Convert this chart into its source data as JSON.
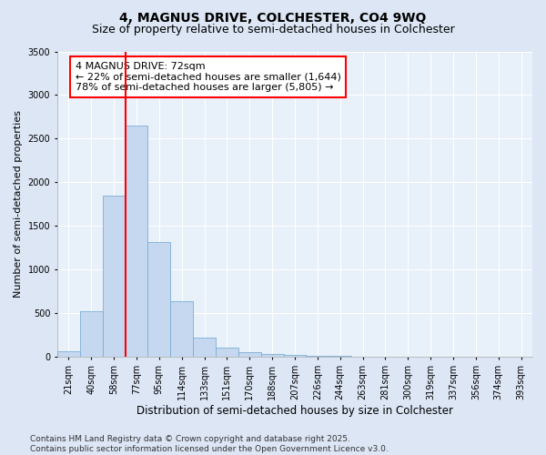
{
  "title": "4, MAGNUS DRIVE, COLCHESTER, CO4 9WQ",
  "subtitle": "Size of property relative to semi-detached houses in Colchester",
  "xlabel": "Distribution of semi-detached houses by size in Colchester",
  "ylabel": "Number of semi-detached properties",
  "categories": [
    "21sqm",
    "40sqm",
    "58sqm",
    "77sqm",
    "95sqm",
    "114sqm",
    "133sqm",
    "151sqm",
    "170sqm",
    "188sqm",
    "207sqm",
    "226sqm",
    "244sqm",
    "263sqm",
    "281sqm",
    "300sqm",
    "319sqm",
    "337sqm",
    "356sqm",
    "374sqm",
    "393sqm"
  ],
  "values": [
    65,
    525,
    1850,
    2650,
    1310,
    640,
    220,
    100,
    50,
    30,
    15,
    10,
    5,
    0,
    0,
    0,
    0,
    0,
    0,
    0,
    0
  ],
  "bar_color": "#c5d8f0",
  "bar_edge_color": "#7aafd4",
  "vline_position": 2.5,
  "vline_color": "red",
  "annotation_text": "4 MAGNUS DRIVE: 72sqm\n← 22% of semi-detached houses are smaller (1,644)\n78% of semi-detached houses are larger (5,805) →",
  "annotation_box_color": "white",
  "annotation_box_edge_color": "red",
  "ylim": [
    0,
    3500
  ],
  "yticks": [
    0,
    500,
    1000,
    1500,
    2000,
    2500,
    3000,
    3500
  ],
  "bg_color": "#dce6f5",
  "plot_bg_color": "#e8f0fa",
  "footer": "Contains HM Land Registry data © Crown copyright and database right 2025.\nContains public sector information licensed under the Open Government Licence v3.0.",
  "title_fontsize": 10,
  "subtitle_fontsize": 9,
  "xlabel_fontsize": 8.5,
  "ylabel_fontsize": 8,
  "tick_fontsize": 7,
  "annotation_fontsize": 8,
  "footer_fontsize": 6.5
}
